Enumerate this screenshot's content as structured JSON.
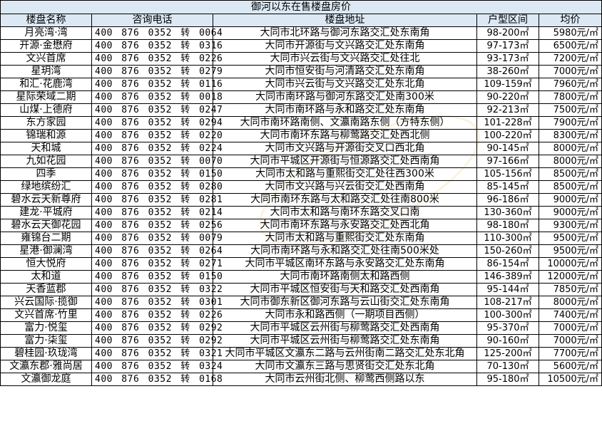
{
  "title": "御河以东在售楼盘房价",
  "headers": [
    "楼盘名称",
    "咨询电话",
    "楼盘地址",
    "户型区间",
    "均价"
  ],
  "rows": [
    [
      "月亮湾·湾",
      "400 876 0352 转 0064",
      "大同市北环路与御河东路交汇处东南角",
      "98-200㎡",
      "5980元/㎡"
    ],
    [
      "开源·金懋府",
      "400 876 0352 转 0316",
      "大同市开源街与文兴路交汇处东南角",
      "97-173㎡",
      "6500元/㎡"
    ],
    [
      "文兴首席",
      "400 876 0352 转 0226",
      "大同市兴云街与文兴路交汇处往北",
      "93-173㎡",
      "7200元/㎡"
    ],
    [
      "星玥湾",
      "400 876 0352 转 0279",
      "大同市恒安街与河清路交汇处东南角",
      "38-260㎡",
      "7000元/㎡"
    ],
    [
      "和汇·花鹿湾",
      "400 876 0352 转 0116",
      "大同市兴云街与文兴路交汇处东北角",
      "109-159㎡",
      "7960元/㎡"
    ],
    [
      "星际荣域二期",
      "400 876 0352 转 0018",
      "大同市南环路与御河东路交汇处南300米",
      "90-220㎡",
      "7800元/㎡"
    ],
    [
      "山煤·上德府",
      "400 876 0352 转 0247",
      "大同市南环路与永和路交汇处东南角",
      "92-213㎡",
      "7500元/㎡"
    ],
    [
      "东方家园",
      "400 876 0352 转 0294",
      "大同市南环路南侧、文瀛南路东侧（方特东侧）",
      "101-228㎡",
      "7900元/㎡"
    ],
    [
      "锦瑞和源",
      "400 876 0352 转 0220",
      "大同市南环东路与柳莺路交汇处西北侧",
      "100-220㎡",
      "8300元/㎡"
    ],
    [
      "天和城",
      "400 876 0352 转 0224",
      "大同市文兴路与开源街交叉口西北角",
      "90-145㎡",
      "8000元/㎡"
    ],
    [
      "九如花园",
      "400 876 0352 转 0070",
      "大同市平城区开源街与恒源路交汇处西南角",
      "97-166㎡",
      "8000元/㎡"
    ],
    [
      "四季",
      "400 876 0352 转 0150",
      "大同市太和路与重熙街交汇处往西300米",
      "105-156㎡",
      "8500元/㎡"
    ],
    [
      "绿地缤纷汇",
      "400 876 0352 转 0280",
      "大同市文兴路与兴云街交汇处西南角",
      "85-145㎡",
      "8500元/㎡"
    ],
    [
      "碧水云天新尊府",
      "400 876 0352 转 0281",
      "大同市南环东路与太和路交汇处往南800米",
      "96-186㎡",
      "9000元/㎡"
    ],
    [
      "建龙·平城府",
      "400 876 0352 转 0214",
      "大同市太和路与南环东路交叉口南",
      "130-360㎡",
      "9000元/㎡"
    ],
    [
      "碧水云天御花园",
      "400 876 0352 转 0256",
      "大同市南环东路与永安路交汇处西北角",
      "98-180㎡",
      "9300元/㎡"
    ],
    [
      "雍锦台二期",
      "400 876 0352 转 0079",
      "大同市太和路与重熙街交汇处东南角",
      "110-300㎡",
      "9500元/㎡"
    ],
    [
      "星港·御澜湾",
      "400 876 0352 转 0264",
      "大同市南环路与永和路交汇处往南500米处",
      "150-260㎡",
      "9500元/㎡"
    ],
    [
      "恒大悦府",
      "400 876 0352 转 0271",
      "大同市平城区南环东路与永安路交汇处东南角",
      "86-154㎡",
      "10000元/㎡"
    ],
    [
      "太和道",
      "400 876 0352 转 0150",
      "大同市南环路南侧太和路西侧",
      "146-389㎡",
      "12000元/㎡"
    ],
    [
      "天香蓝郡",
      "400 876 0352 转 0322",
      "大同市平城区恒安街与天和路交汇处西南角",
      "95-144㎡",
      "7850元/㎡"
    ],
    [
      "兴云国际·揽御",
      "400 876 0352 转 0301",
      "大同市御东新区御河东路与云山街交汇处东南角",
      "108-217㎡",
      "8000元/㎡"
    ],
    [
      "文兴首席·竹里",
      "400 876 0352 转 0226",
      "大同市永和路西侧（一期项目西侧）",
      "100-300㎡",
      "7400元/㎡"
    ],
    [
      "富力·悦玺",
      "400 876 0352 转 0292",
      "大同市平城区云州街与柳莺路交汇处西南角",
      "95-370㎡",
      "7000元/㎡"
    ],
    [
      "富力·柒玺",
      "400 876 0352 转 0292",
      "大同市平城区云州街与柳莺路交汇处东南角",
      "90-160㎡",
      "7000元/㎡"
    ],
    [
      "碧桂园·玖珑湾",
      "400 876 0352 转 0321",
      "大同市平城区文瀛东二路与云州街南二路交汇处东北角",
      "125-200㎡",
      "7700元/㎡"
    ],
    [
      "文瀛东郡·雅尚居",
      "400 876 0352 转 0324",
      "大同市文瀛东三路与思贤街交汇处东北角",
      "70-130㎡",
      "5600元/㎡"
    ],
    [
      "文瀛御龙庭",
      "400 876 0352 转 0168",
      "大同市云州街北侧、柳莺西侧路以东",
      "95-180㎡",
      "10500元/㎡"
    ]
  ],
  "colors": {
    "header_bg": "#dce9f5",
    "border": "#000000"
  }
}
